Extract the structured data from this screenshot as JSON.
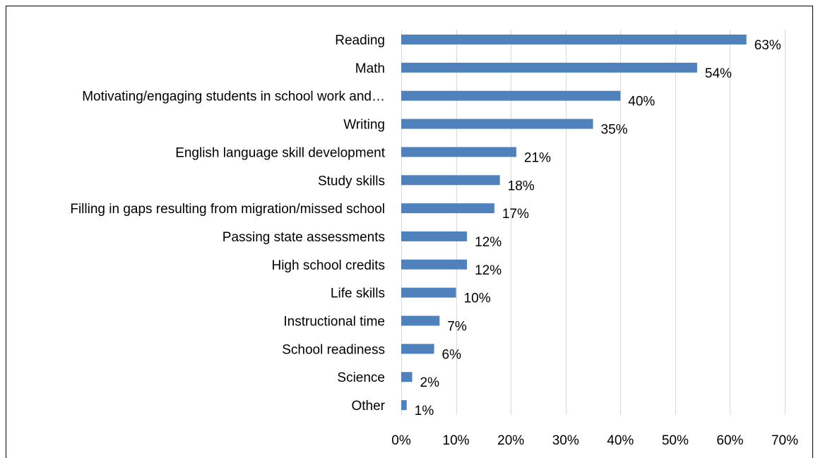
{
  "chart_data": {
    "type": "bar",
    "orientation": "horizontal",
    "title": "",
    "xlabel": "",
    "ylabel": "",
    "categories": [
      "Reading",
      "Math",
      "Motivating/engaging students in school work and…",
      "Writing",
      "English language skill development",
      "Study skills",
      "Filling in gaps resulting from migration/missed school",
      "Passing state assessments",
      "High school credits",
      "Life skills",
      "Instructional time",
      "School readiness",
      "Science",
      "Other"
    ],
    "values": [
      63,
      54,
      40,
      35,
      21,
      18,
      17,
      12,
      12,
      10,
      7,
      6,
      2,
      1
    ],
    "value_labels": [
      "63%",
      "54%",
      "40%",
      "35%",
      "21%",
      "18%",
      "17%",
      "12%",
      "12%",
      "10%",
      "7%",
      "6%",
      "2%",
      "1%"
    ],
    "xlim": [
      0,
      70
    ],
    "x_ticks": [
      0,
      10,
      20,
      30,
      40,
      50,
      60,
      70
    ],
    "x_tick_labels": [
      "0%",
      "10%",
      "20%",
      "30%",
      "40%",
      "50%",
      "60%",
      "70%"
    ],
    "grid": "vertical",
    "legend": "none",
    "bar_color": "#4F81BD",
    "grid_color": "#D9D9D9",
    "frame_color": "#000000"
  }
}
